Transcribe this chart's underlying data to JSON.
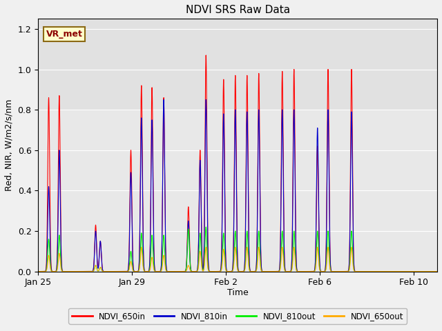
{
  "title": "NDVI SRS Raw Data",
  "ylabel": "Red, NIR, W/m2/s/nm",
  "xlabel": "Time",
  "ylim": [
    0,
    1.25
  ],
  "fig_facecolor": "#f0f0f0",
  "plot_bg_color": "#e8e8e8",
  "annotation_label": "VR_met",
  "series_order": [
    "NDVI_650in",
    "NDVI_810in",
    "NDVI_810out",
    "NDVI_650out"
  ],
  "series": {
    "NDVI_650in": {
      "color": "#ff0000",
      "peaks": [
        [
          0.45,
          0.86
        ],
        [
          0.9,
          0.87
        ],
        [
          2.45,
          0.23
        ],
        [
          2.65,
          0.15
        ],
        [
          3.95,
          0.6
        ],
        [
          4.4,
          0.92
        ],
        [
          4.85,
          0.91
        ],
        [
          5.35,
          0.86
        ],
        [
          6.4,
          0.32
        ],
        [
          6.9,
          0.6
        ],
        [
          7.15,
          1.07
        ],
        [
          7.9,
          0.95
        ],
        [
          8.4,
          0.97
        ],
        [
          8.9,
          0.97
        ],
        [
          9.4,
          0.98
        ],
        [
          10.4,
          0.99
        ],
        [
          10.9,
          1.0
        ],
        [
          11.9,
          0.62
        ],
        [
          12.35,
          1.0
        ],
        [
          13.35,
          1.0
        ]
      ]
    },
    "NDVI_810in": {
      "color": "#0000cc",
      "peaks": [
        [
          0.45,
          0.42
        ],
        [
          0.9,
          0.6
        ],
        [
          2.45,
          0.2
        ],
        [
          2.65,
          0.15
        ],
        [
          3.95,
          0.49
        ],
        [
          4.4,
          0.76
        ],
        [
          4.85,
          0.75
        ],
        [
          5.35,
          0.85
        ],
        [
          6.4,
          0.25
        ],
        [
          6.9,
          0.55
        ],
        [
          7.15,
          0.85
        ],
        [
          7.9,
          0.78
        ],
        [
          8.4,
          0.8
        ],
        [
          8.9,
          0.79
        ],
        [
          9.4,
          0.8
        ],
        [
          10.4,
          0.8
        ],
        [
          10.9,
          0.8
        ],
        [
          11.9,
          0.71
        ],
        [
          12.35,
          0.8
        ],
        [
          13.35,
          0.79
        ]
      ]
    },
    "NDVI_810out": {
      "color": "#00ee00",
      "peaks": [
        [
          0.45,
          0.16
        ],
        [
          0.9,
          0.18
        ],
        [
          2.45,
          0.03
        ],
        [
          2.65,
          0.02
        ],
        [
          3.95,
          0.1
        ],
        [
          4.4,
          0.19
        ],
        [
          4.85,
          0.18
        ],
        [
          5.35,
          0.18
        ],
        [
          6.4,
          0.21
        ],
        [
          6.9,
          0.19
        ],
        [
          7.15,
          0.22
        ],
        [
          7.9,
          0.19
        ],
        [
          8.4,
          0.2
        ],
        [
          8.9,
          0.2
        ],
        [
          9.4,
          0.2
        ],
        [
          10.4,
          0.2
        ],
        [
          10.9,
          0.2
        ],
        [
          11.9,
          0.2
        ],
        [
          12.35,
          0.2
        ],
        [
          13.35,
          0.2
        ]
      ]
    },
    "NDVI_650out": {
      "color": "#ffaa00",
      "peaks": [
        [
          0.45,
          0.08
        ],
        [
          0.9,
          0.09
        ],
        [
          2.45,
          0.03
        ],
        [
          2.65,
          0.02
        ],
        [
          3.95,
          0.05
        ],
        [
          4.4,
          0.12
        ],
        [
          4.85,
          0.07
        ],
        [
          5.35,
          0.08
        ],
        [
          6.4,
          0.03
        ],
        [
          6.9,
          0.1
        ],
        [
          7.15,
          0.12
        ],
        [
          7.9,
          0.11
        ],
        [
          8.4,
          0.12
        ],
        [
          8.9,
          0.12
        ],
        [
          9.4,
          0.12
        ],
        [
          10.4,
          0.12
        ],
        [
          10.9,
          0.12
        ],
        [
          11.9,
          0.12
        ],
        [
          12.35,
          0.12
        ],
        [
          13.35,
          0.12
        ]
      ]
    }
  },
  "xtick_positions": [
    0,
    4,
    8,
    12,
    16
  ],
  "xtick_labels": [
    "Jan 25",
    "Jan 29",
    "Feb 2",
    "Feb 6",
    "Feb 10"
  ],
  "xlim": [
    0,
    17
  ],
  "spike_sigma": 0.04,
  "legend_colors": [
    "#ff0000",
    "#0000cc",
    "#00ee00",
    "#ffaa00"
  ],
  "legend_labels": [
    "NDVI_650in",
    "NDVI_810in",
    "NDVI_810out",
    "NDVI_650out"
  ]
}
